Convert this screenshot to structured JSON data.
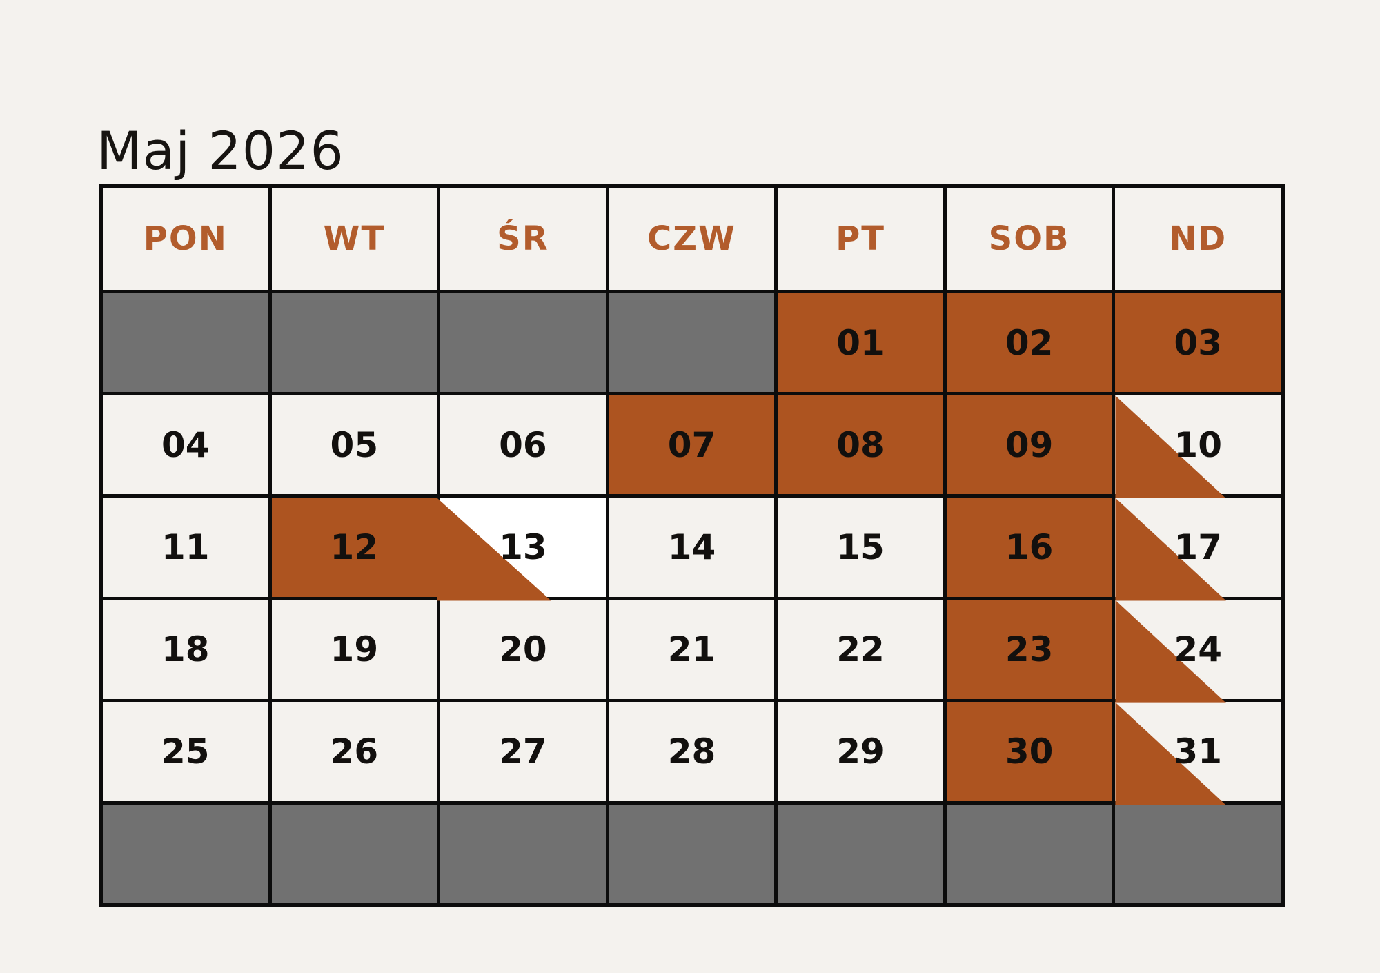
{
  "title": "Maj 2026",
  "weekdays": [
    "PON",
    "WT",
    "ŚR",
    "CZW",
    "PT",
    "SOB",
    "ND"
  ],
  "weeks": [
    [
      {
        "day": "",
        "state": "empty"
      },
      {
        "day": "",
        "state": "empty"
      },
      {
        "day": "",
        "state": "empty"
      },
      {
        "day": "",
        "state": "empty"
      },
      {
        "day": "01",
        "state": "booked"
      },
      {
        "day": "02",
        "state": "booked"
      },
      {
        "day": "03",
        "state": "booked"
      }
    ],
    [
      {
        "day": "04",
        "state": "free"
      },
      {
        "day": "05",
        "state": "free"
      },
      {
        "day": "06",
        "state": "free"
      },
      {
        "day": "07",
        "state": "booked"
      },
      {
        "day": "08",
        "state": "booked"
      },
      {
        "day": "09",
        "state": "booked"
      },
      {
        "day": "10",
        "state": "checkout"
      }
    ],
    [
      {
        "day": "11",
        "state": "free"
      },
      {
        "day": "12",
        "state": "booked"
      },
      {
        "day": "13",
        "state": "checkout_merged"
      },
      {
        "day": "14",
        "state": "free"
      },
      {
        "day": "15",
        "state": "free"
      },
      {
        "day": "16",
        "state": "booked"
      },
      {
        "day": "17",
        "state": "checkout"
      }
    ],
    [
      {
        "day": "18",
        "state": "free"
      },
      {
        "day": "19",
        "state": "free"
      },
      {
        "day": "20",
        "state": "free"
      },
      {
        "day": "21",
        "state": "free"
      },
      {
        "day": "22",
        "state": "free"
      },
      {
        "day": "23",
        "state": "booked"
      },
      {
        "day": "24",
        "state": "checkout"
      }
    ],
    [
      {
        "day": "25",
        "state": "free"
      },
      {
        "day": "26",
        "state": "free"
      },
      {
        "day": "27",
        "state": "free"
      },
      {
        "day": "28",
        "state": "free"
      },
      {
        "day": "29",
        "state": "free"
      },
      {
        "day": "30",
        "state": "booked"
      },
      {
        "day": "31",
        "state": "checkout"
      }
    ],
    [
      {
        "day": "",
        "state": "empty"
      },
      {
        "day": "",
        "state": "empty"
      },
      {
        "day": "",
        "state": "empty"
      },
      {
        "day": "",
        "state": "empty"
      },
      {
        "day": "",
        "state": "empty"
      },
      {
        "day": "",
        "state": "empty"
      },
      {
        "day": "",
        "state": "empty"
      }
    ]
  ],
  "colors": {
    "page_background": "#f4f2ee",
    "cell_background": "#f4f2ee",
    "booked_fill": "#ad5420",
    "blocked_fill": "#717171",
    "grid_line": "#0c0c0c",
    "header_text": "#b25c2c",
    "day_text": "#12100e",
    "checkout_cell_white": "#ffffff"
  }
}
